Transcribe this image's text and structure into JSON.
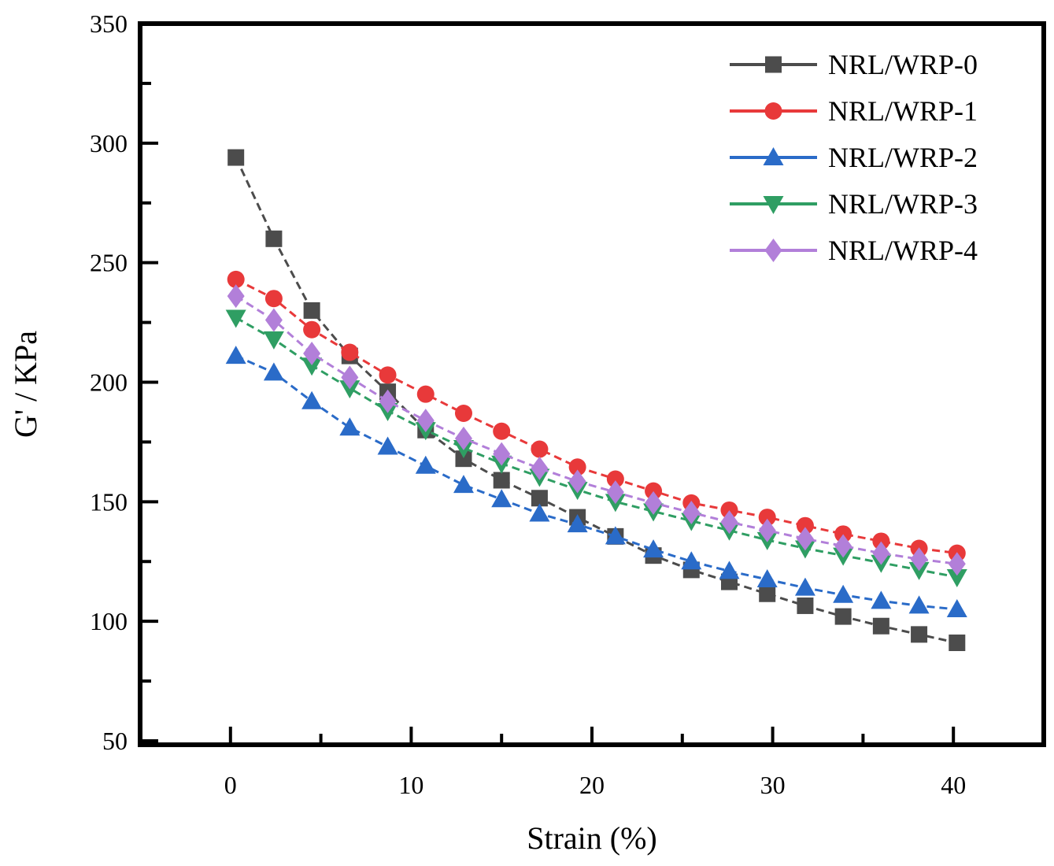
{
  "chart_data": {
    "type": "line",
    "title": "",
    "xlabel": "Strain (%)",
    "ylabel": "G' / KPa",
    "xlim": [
      -5,
      45
    ],
    "ylim": [
      50,
      350
    ],
    "grid": false,
    "legend_position": "top-right",
    "axes": {
      "x_major_ticks": [
        0,
        10,
        20,
        30,
        40
      ],
      "x_minor_ticks": [
        5,
        15,
        25,
        35
      ],
      "y_major_ticks": [
        50,
        100,
        150,
        200,
        250,
        300,
        350
      ],
      "y_minor_ticks": [
        75,
        125,
        175,
        225,
        275,
        325
      ],
      "x_tick_labels": [
        "0",
        "10",
        "20",
        "30",
        "40"
      ],
      "y_tick_labels": [
        "50",
        "100",
        "150",
        "200",
        "250",
        "300",
        "350"
      ],
      "spine_color": "#000000"
    },
    "x": [
      0.3,
      2.4,
      4.5,
      6.6,
      8.7,
      10.8,
      12.9,
      15.0,
      17.1,
      19.2,
      21.3,
      23.4,
      25.5,
      27.6,
      29.7,
      31.8,
      33.9,
      36.0,
      38.1,
      40.2
    ],
    "series": [
      {
        "name": "NRL/WRP-0",
        "color": "#4c4c4c",
        "marker": "square",
        "line_style": "dashed",
        "values": [
          294,
          260,
          230,
          211,
          196,
          180,
          168,
          159,
          151.5,
          143.5,
          135.5,
          127.5,
          121.5,
          116.5,
          111.5,
          106.5,
          102,
          98,
          94.5,
          91
        ]
      },
      {
        "name": "NRL/WRP-1",
        "color": "#e8393a",
        "marker": "circle",
        "line_style": "dashed",
        "values": [
          243,
          235,
          222,
          212.5,
          203,
          195,
          187,
          179.5,
          172,
          164.5,
          159.5,
          154.5,
          149.5,
          146.5,
          143.5,
          140,
          136.5,
          133.5,
          130.5,
          128.5
        ]
      },
      {
        "name": "NRL/WRP-2",
        "color": "#2a6bc8",
        "marker": "triangle-up",
        "line_style": "dashed",
        "values": [
          211,
          204,
          192,
          181,
          173,
          165,
          157,
          151,
          145,
          140.5,
          135.5,
          130,
          125,
          121,
          117.5,
          114,
          111,
          108.5,
          106.5,
          105
        ]
      },
      {
        "name": "NRL/WRP-3",
        "color": "#2f9e63",
        "marker": "triangle-down",
        "line_style": "dashed",
        "values": [
          227,
          218,
          207,
          197.5,
          188,
          180,
          172.5,
          166,
          160.5,
          155,
          150,
          146,
          142,
          138,
          134,
          130.5,
          127.5,
          124.5,
          121.5,
          118.5
        ]
      },
      {
        "name": "NRL/WRP-4",
        "color": "#b27fd9",
        "marker": "diamond",
        "line_style": "dashed",
        "values": [
          236,
          226,
          212,
          202,
          192,
          184,
          176.5,
          170,
          164,
          158.5,
          154,
          149.5,
          145.5,
          141.5,
          138,
          134.5,
          131.5,
          128.5,
          126,
          124
        ]
      }
    ]
  }
}
